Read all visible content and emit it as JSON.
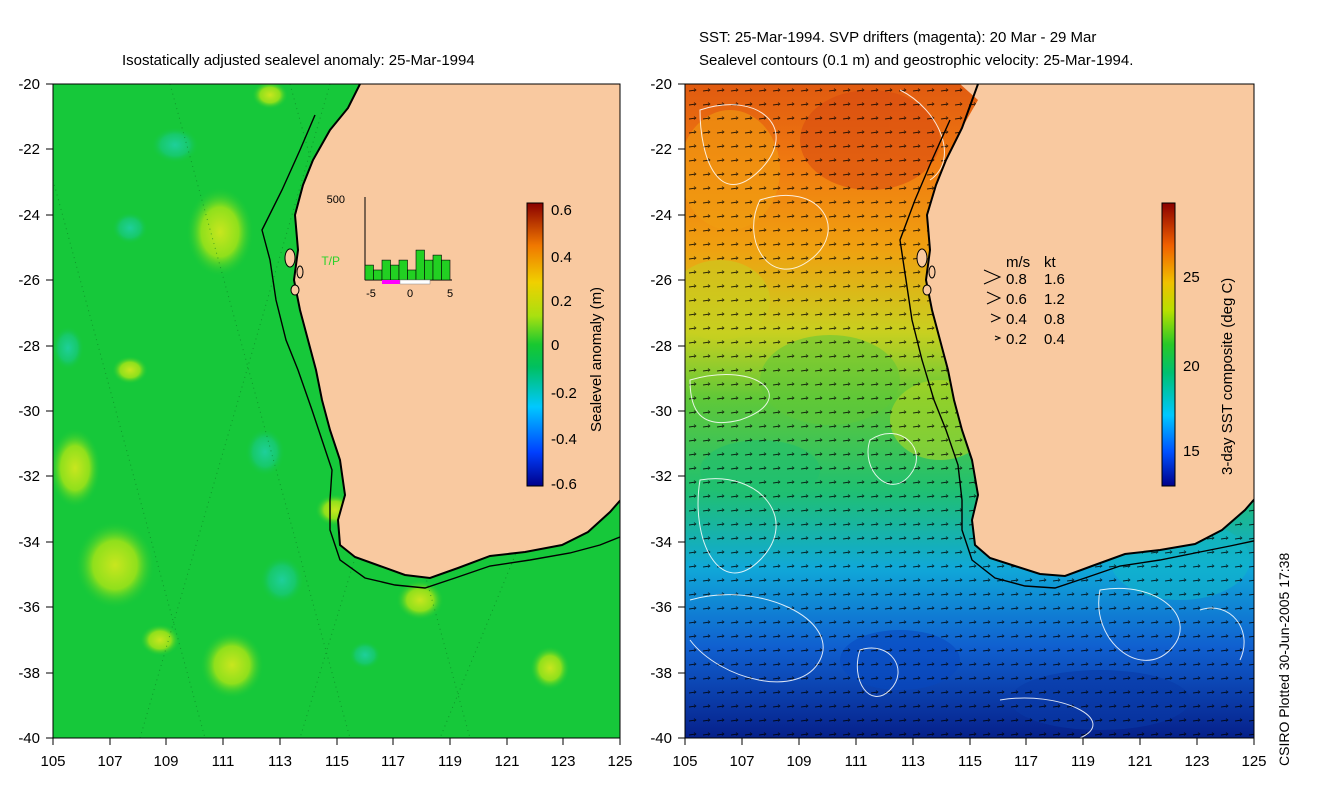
{
  "left_panel": {
    "title": "Isostatically adjusted sealevel anomaly: 25-Mar-1994",
    "y_ticks": [
      "-20",
      "-22",
      "-24",
      "-26",
      "-28",
      "-30",
      "-32",
      "-34",
      "-36",
      "-38",
      "-40"
    ],
    "x_ticks": [
      "105",
      "107",
      "109",
      "111",
      "113",
      "115",
      "117",
      "119",
      "121",
      "123",
      "125"
    ],
    "colorbar": {
      "label": "Sealevel anomaly (m)",
      "ticks": [
        "0.6",
        "0.4",
        "0.2",
        "0",
        "-0.2",
        "-0.4",
        "-0.6"
      ],
      "range": [
        -0.6,
        0.6
      ]
    },
    "inset_histogram": {
      "y_max_label": "500",
      "series_label": "T/P",
      "x_ticks": [
        "-5",
        "0",
        "5"
      ],
      "bar_values": [
        90,
        60,
        120,
        90,
        120,
        60,
        180,
        120,
        150,
        120
      ],
      "y_max": 500
    }
  },
  "right_panel": {
    "title_line1": "SST: 25-Mar-1994. SVP drifters (magenta): 20 Mar - 29 Mar",
    "title_line2": "Sealevel contours (0.1 m) and geostrophic velocity: 25-Mar-1994.",
    "y_ticks": [
      "-20",
      "-22",
      "-24",
      "-26",
      "-28",
      "-30",
      "-32",
      "-34",
      "-36",
      "-38",
      "-40"
    ],
    "x_ticks": [
      "105",
      "107",
      "109",
      "111",
      "113",
      "115",
      "117",
      "119",
      "121",
      "123",
      "125"
    ],
    "colorbar": {
      "label": "3-day SST composite (deg C)",
      "ticks": [
        "25",
        "20",
        "15"
      ],
      "range": [
        13,
        29
      ]
    },
    "velocity_legend": {
      "header_ms": "m/s",
      "header_kt": "kt",
      "rows": [
        {
          "ms": "0.8",
          "kt": "1.6"
        },
        {
          "ms": "0.6",
          "kt": "1.2"
        },
        {
          "ms": "0.4",
          "kt": "0.8"
        },
        {
          "ms": "0.2",
          "kt": "0.4"
        }
      ]
    }
  },
  "credit": "CSIRO Plotted 30-Jun-2005 17:38",
  "colors": {
    "land": "#f9c9a0",
    "ocean_anomaly": "#16c83a",
    "coastline": "#000000"
  }
}
